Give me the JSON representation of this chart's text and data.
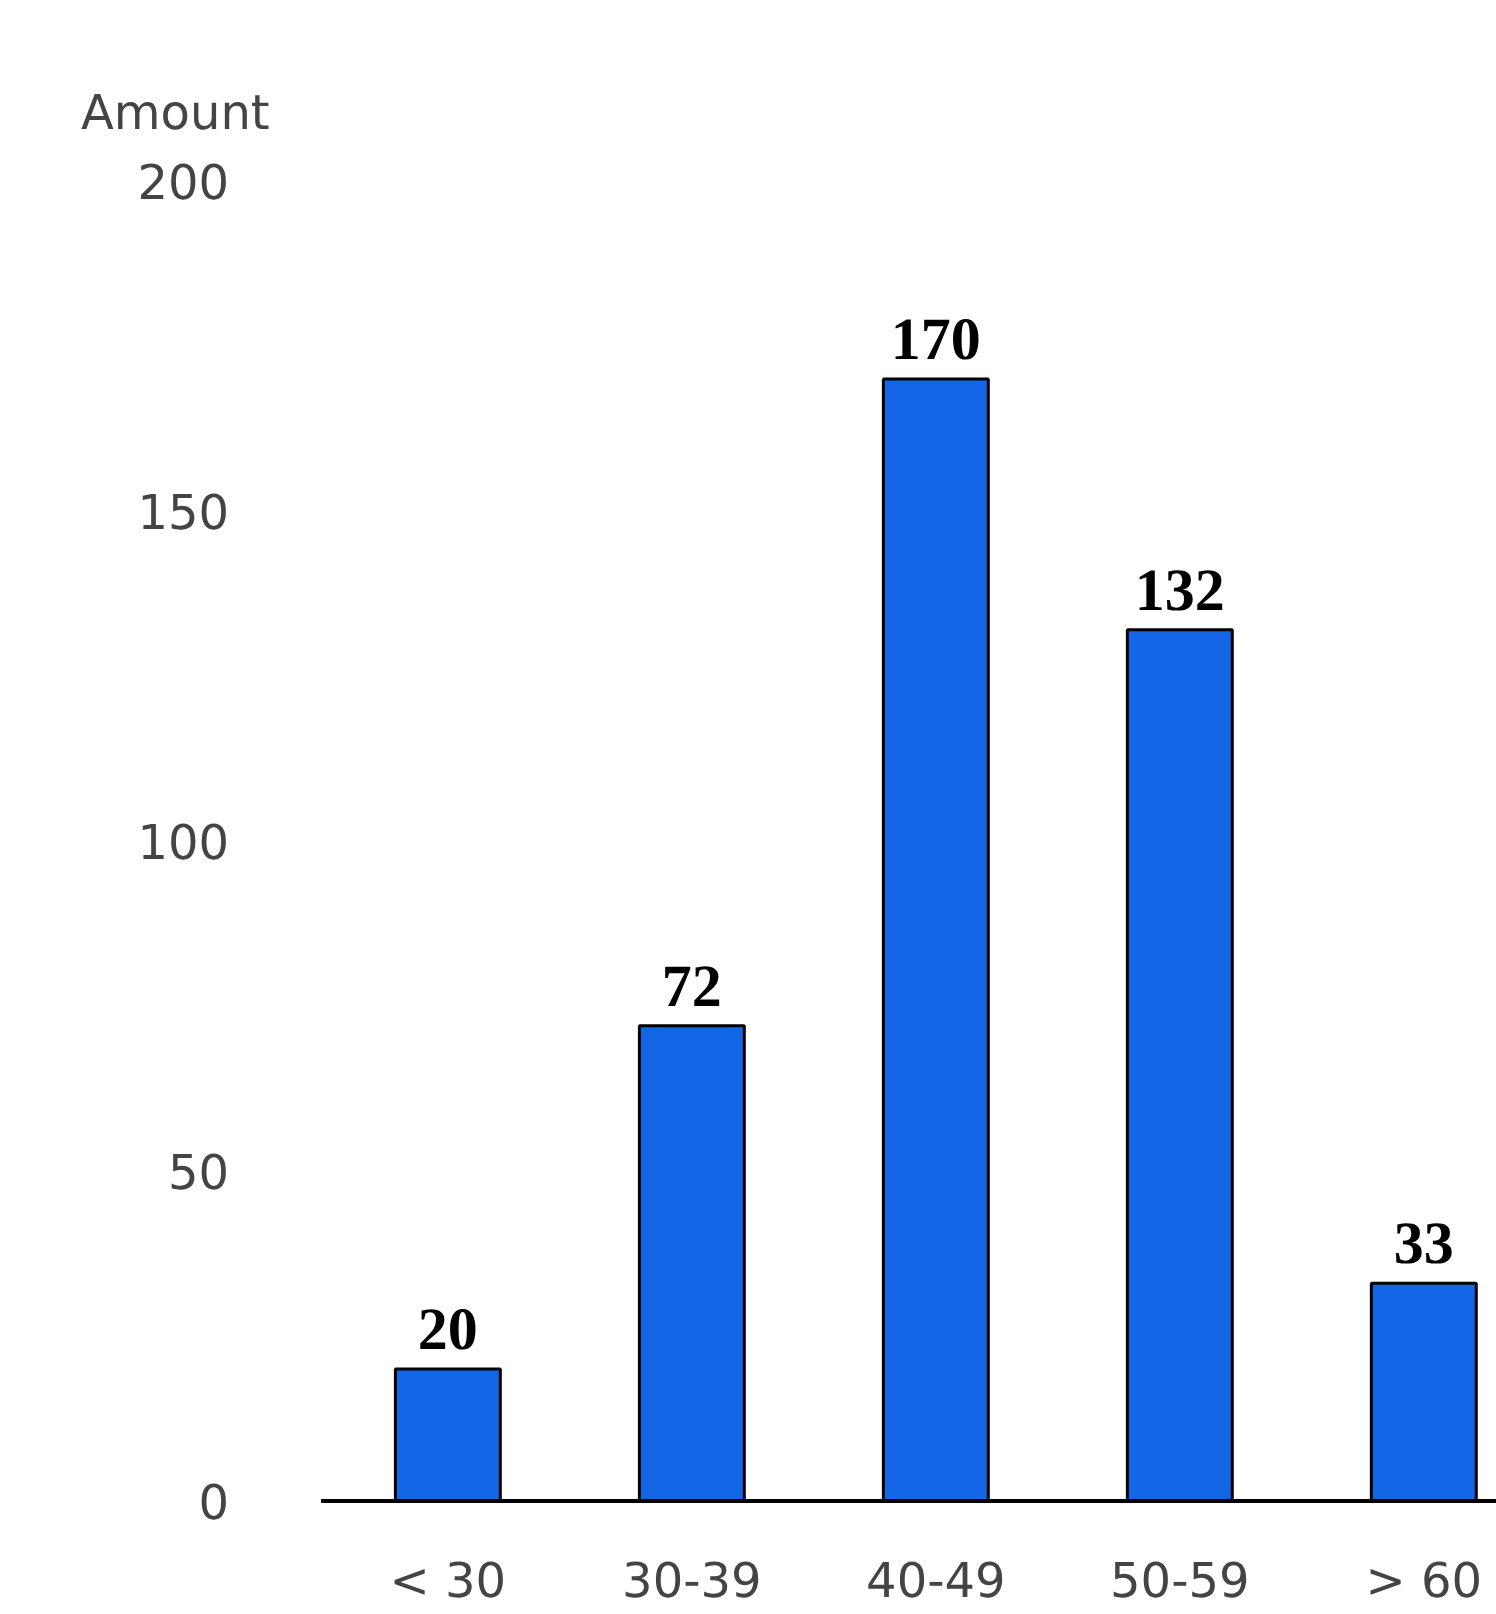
{
  "chart_data": {
    "type": "bar",
    "ylabel": "Amount",
    "categories": [
      "< 30",
      "30-39",
      "40-49",
      "50-59",
      "> 60"
    ],
    "values": [
      20,
      72,
      170,
      132,
      33
    ],
    "color": "#1366e6",
    "ylim": [
      0,
      200
    ],
    "yticks": [
      0,
      50,
      100,
      150,
      200
    ],
    "data_labels": true,
    "grid": false
  }
}
